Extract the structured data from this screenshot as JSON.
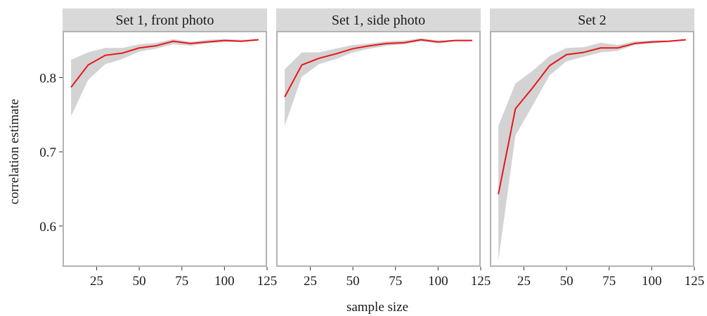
{
  "chart_data": {
    "type": "line",
    "xlabel": "sample size",
    "ylabel": "correlation estimate",
    "xlim": [
      5,
      125
    ],
    "ylim": [
      0.545,
      0.862
    ],
    "x_ticks": [
      25,
      50,
      75,
      100,
      125
    ],
    "y_ticks": [
      0.6,
      0.7,
      0.8
    ],
    "grid": false,
    "line_color": "#e8161b",
    "band_color": "#d3d3d3",
    "strip_color": "#d9d9d9",
    "panel_border_color": "#b3b3b3",
    "x": [
      10,
      20,
      30,
      40,
      50,
      60,
      70,
      80,
      90,
      100,
      110,
      120
    ],
    "panels": [
      {
        "title": "Set 1, front photo",
        "x": [
          10,
          20,
          30,
          40,
          50,
          60,
          70,
          80,
          90,
          100,
          110,
          120
        ],
        "estimate": [
          0.787,
          0.817,
          0.83,
          0.833,
          0.84,
          0.843,
          0.849,
          0.846,
          0.848,
          0.85,
          0.849,
          0.851
        ],
        "lower": [
          0.748,
          0.797,
          0.818,
          0.825,
          0.835,
          0.839,
          0.845,
          0.843,
          0.846,
          0.848,
          0.848,
          0.85
        ],
        "upper": [
          0.824,
          0.834,
          0.84,
          0.84,
          0.845,
          0.847,
          0.852,
          0.848,
          0.851,
          0.852,
          0.851,
          0.852
        ]
      },
      {
        "title": "Set 1, side photo",
        "x": [
          10,
          20,
          30,
          40,
          50,
          60,
          70,
          80,
          90,
          100,
          110,
          120
        ],
        "estimate": [
          0.774,
          0.817,
          0.826,
          0.832,
          0.839,
          0.843,
          0.846,
          0.847,
          0.851,
          0.848,
          0.85,
          0.85
        ],
        "lower": [
          0.735,
          0.801,
          0.818,
          0.825,
          0.834,
          0.839,
          0.843,
          0.845,
          0.849,
          0.846,
          0.849,
          0.849
        ],
        "upper": [
          0.811,
          0.834,
          0.834,
          0.839,
          0.844,
          0.846,
          0.849,
          0.85,
          0.853,
          0.85,
          0.851,
          0.851
        ]
      },
      {
        "title": "Set 2",
        "x": [
          10,
          20,
          30,
          40,
          50,
          60,
          70,
          80,
          90,
          100,
          110,
          120
        ],
        "estimate": [
          0.643,
          0.758,
          0.786,
          0.816,
          0.831,
          0.834,
          0.84,
          0.84,
          0.846,
          0.848,
          0.849,
          0.851
        ],
        "lower": [
          0.553,
          0.722,
          0.762,
          0.803,
          0.822,
          0.828,
          0.834,
          0.836,
          0.844,
          0.846,
          0.848,
          0.85
        ],
        "upper": [
          0.735,
          0.792,
          0.809,
          0.829,
          0.84,
          0.841,
          0.847,
          0.844,
          0.849,
          0.85,
          0.85,
          0.852
        ]
      }
    ]
  }
}
